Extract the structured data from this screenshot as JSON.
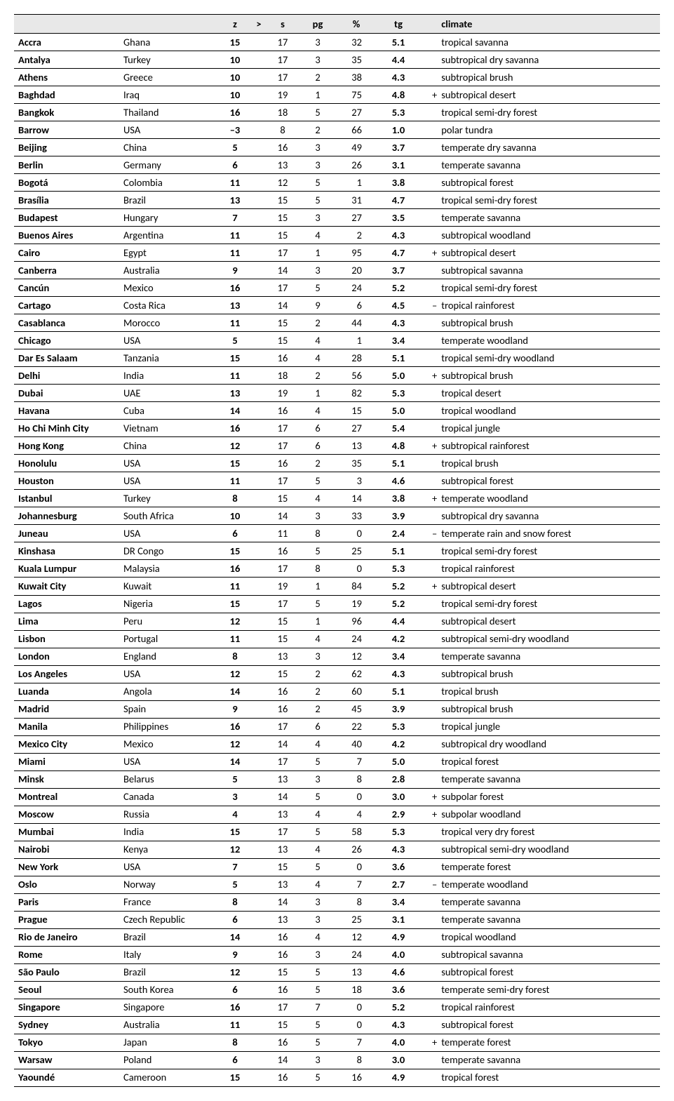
{
  "table": {
    "headers": {
      "city": "",
      "country": "",
      "z": "z",
      "gt": ">",
      "s": "s",
      "pg": "pg",
      "pct": "%",
      "tg": "tg",
      "prefix": "",
      "climate": "climate"
    },
    "rows": [
      {
        "city": "Accra",
        "country": "Ghana",
        "z": "15",
        "gt": "",
        "s": "17",
        "pg": "3",
        "pct": "32",
        "tg": "5.1",
        "prefix": "",
        "climate": "tropical savanna"
      },
      {
        "city": "Antalya",
        "country": "Turkey",
        "z": "10",
        "gt": "",
        "s": "17",
        "pg": "3",
        "pct": "35",
        "tg": "4.4",
        "prefix": "",
        "climate": "subtropical dry savanna"
      },
      {
        "city": "Athens",
        "country": "Greece",
        "z": "10",
        "gt": "",
        "s": "17",
        "pg": "2",
        "pct": "38",
        "tg": "4.3",
        "prefix": "",
        "climate": "subtropical brush"
      },
      {
        "city": "Baghdad",
        "country": "Iraq",
        "z": "10",
        "gt": "",
        "s": "19",
        "pg": "1",
        "pct": "75",
        "tg": "4.8",
        "prefix": "+",
        "climate": "subtropical desert"
      },
      {
        "city": "Bangkok",
        "country": "Thailand",
        "z": "16",
        "gt": "",
        "s": "18",
        "pg": "5",
        "pct": "27",
        "tg": "5.3",
        "prefix": "",
        "climate": "tropical semi-dry forest"
      },
      {
        "city": "Barrow",
        "country": "USA",
        "z": "–3",
        "gt": "",
        "s": "8",
        "pg": "2",
        "pct": "66",
        "tg": "1.0",
        "prefix": "",
        "climate": "polar tundra"
      },
      {
        "city": "Beijing",
        "country": "China",
        "z": "5",
        "gt": "",
        "s": "16",
        "pg": "3",
        "pct": "49",
        "tg": "3.7",
        "prefix": "",
        "climate": "temperate dry savanna"
      },
      {
        "city": "Berlin",
        "country": "Germany",
        "z": "6",
        "gt": "",
        "s": "13",
        "pg": "3",
        "pct": "26",
        "tg": "3.1",
        "prefix": "",
        "climate": "temperate savanna"
      },
      {
        "city": "Bogotá",
        "country": "Colombia",
        "z": "11",
        "gt": "",
        "s": "12",
        "pg": "5",
        "pct": "1",
        "tg": "3.8",
        "prefix": "",
        "climate": "subtropical forest"
      },
      {
        "city": "Brasília",
        "country": "Brazil",
        "z": "13",
        "gt": "",
        "s": "15",
        "pg": "5",
        "pct": "31",
        "tg": "4.7",
        "prefix": "",
        "climate": "tropical semi-dry forest"
      },
      {
        "city": "Budapest",
        "country": "Hungary",
        "z": "7",
        "gt": "",
        "s": "15",
        "pg": "3",
        "pct": "27",
        "tg": "3.5",
        "prefix": "",
        "climate": "temperate savanna"
      },
      {
        "city": "Buenos Aires",
        "country": "Argentina",
        "z": "11",
        "gt": "",
        "s": "15",
        "pg": "4",
        "pct": "2",
        "tg": "4.3",
        "prefix": "",
        "climate": "subtropical woodland"
      },
      {
        "city": "Cairo",
        "country": "Egypt",
        "z": "11",
        "gt": "",
        "s": "17",
        "pg": "1",
        "pct": "95",
        "tg": "4.7",
        "prefix": "+",
        "climate": "subtropical desert"
      },
      {
        "city": "Canberra",
        "country": "Australia",
        "z": "9",
        "gt": "",
        "s": "14",
        "pg": "3",
        "pct": "20",
        "tg": "3.7",
        "prefix": "",
        "climate": "subtropical savanna"
      },
      {
        "city": "Cancún",
        "country": "Mexico",
        "z": "16",
        "gt": "",
        "s": "17",
        "pg": "5",
        "pct": "24",
        "tg": "5.2",
        "prefix": "",
        "climate": "tropical semi-dry forest"
      },
      {
        "city": "Cartago",
        "country": "Costa Rica",
        "z": "13",
        "gt": "",
        "s": "14",
        "pg": "9",
        "pct": "6",
        "tg": "4.5",
        "prefix": "–",
        "climate": "tropical rainforest"
      },
      {
        "city": "Casablanca",
        "country": "Morocco",
        "z": "11",
        "gt": "",
        "s": "15",
        "pg": "2",
        "pct": "44",
        "tg": "4.3",
        "prefix": "",
        "climate": "subtropical brush"
      },
      {
        "city": "Chicago",
        "country": "USA",
        "z": "5",
        "gt": "",
        "s": "15",
        "pg": "4",
        "pct": "1",
        "tg": "3.4",
        "prefix": "",
        "climate": "temperate woodland"
      },
      {
        "city": "Dar Es Salaam",
        "country": "Tanzania",
        "z": "15",
        "gt": "",
        "s": "16",
        "pg": "4",
        "pct": "28",
        "tg": "5.1",
        "prefix": "",
        "climate": "tropical semi-dry woodland"
      },
      {
        "city": "Delhi",
        "country": "India",
        "z": "11",
        "gt": "",
        "s": "18",
        "pg": "2",
        "pct": "56",
        "tg": "5.0",
        "prefix": "+",
        "climate": "subtropical brush"
      },
      {
        "city": "Dubai",
        "country": "UAE",
        "z": "13",
        "gt": "",
        "s": "19",
        "pg": "1",
        "pct": "82",
        "tg": "5.3",
        "prefix": "",
        "climate": "tropical desert"
      },
      {
        "city": "Havana",
        "country": "Cuba",
        "z": "14",
        "gt": "",
        "s": "16",
        "pg": "4",
        "pct": "15",
        "tg": "5.0",
        "prefix": "",
        "climate": "tropical woodland"
      },
      {
        "city": "Ho Chi Minh City",
        "country": "Vietnam",
        "z": "16",
        "gt": "",
        "s": "17",
        "pg": "6",
        "pct": "27",
        "tg": "5.4",
        "prefix": "",
        "climate": "tropical jungle"
      },
      {
        "city": "Hong Kong",
        "country": "China",
        "z": "12",
        "gt": "",
        "s": "17",
        "pg": "6",
        "pct": "13",
        "tg": "4.8",
        "prefix": "+",
        "climate": "subtropical rainforest"
      },
      {
        "city": "Honolulu",
        "country": "USA",
        "z": "15",
        "gt": "",
        "s": "16",
        "pg": "2",
        "pct": "35",
        "tg": "5.1",
        "prefix": "",
        "climate": "tropical brush"
      },
      {
        "city": "Houston",
        "country": "USA",
        "z": "11",
        "gt": "",
        "s": "17",
        "pg": "5",
        "pct": "3",
        "tg": "4.6",
        "prefix": "",
        "climate": "subtropical forest"
      },
      {
        "city": "Istanbul",
        "country": "Turkey",
        "z": "8",
        "gt": "",
        "s": "15",
        "pg": "4",
        "pct": "14",
        "tg": "3.8",
        "prefix": "+",
        "climate": "temperate woodland"
      },
      {
        "city": "Johannesburg",
        "country": "South Africa",
        "z": "10",
        "gt": "",
        "s": "14",
        "pg": "3",
        "pct": "33",
        "tg": "3.9",
        "prefix": "",
        "climate": "subtropical dry savanna"
      },
      {
        "city": "Juneau",
        "country": "USA",
        "z": "6",
        "gt": "",
        "s": "11",
        "pg": "8",
        "pct": "0",
        "tg": "2.4",
        "prefix": "–",
        "climate": "temperate rain and snow forest"
      },
      {
        "city": "Kinshasa",
        "country": "DR Congo",
        "z": "15",
        "gt": "",
        "s": "16",
        "pg": "5",
        "pct": "25",
        "tg": "5.1",
        "prefix": "",
        "climate": "tropical semi-dry forest"
      },
      {
        "city": "Kuala Lumpur",
        "country": "Malaysia",
        "z": "16",
        "gt": "",
        "s": "17",
        "pg": "8",
        "pct": "0",
        "tg": "5.3",
        "prefix": "",
        "climate": "tropical rainforest"
      },
      {
        "city": "Kuwait City",
        "country": "Kuwait",
        "z": "11",
        "gt": "",
        "s": "19",
        "pg": "1",
        "pct": "84",
        "tg": "5.2",
        "prefix": "+",
        "climate": "subtropical desert"
      },
      {
        "city": "Lagos",
        "country": "Nigeria",
        "z": "15",
        "gt": "",
        "s": "17",
        "pg": "5",
        "pct": "19",
        "tg": "5.2",
        "prefix": "",
        "climate": "tropical semi-dry forest"
      },
      {
        "city": "Lima",
        "country": "Peru",
        "z": "12",
        "gt": "",
        "s": "15",
        "pg": "1",
        "pct": "96",
        "tg": "4.4",
        "prefix": "",
        "climate": "subtropical desert"
      },
      {
        "city": "Lisbon",
        "country": "Portugal",
        "z": "11",
        "gt": "",
        "s": "15",
        "pg": "4",
        "pct": "24",
        "tg": "4.2",
        "prefix": "",
        "climate": "subtropical semi-dry woodland"
      },
      {
        "city": "London",
        "country": "England",
        "z": "8",
        "gt": "",
        "s": "13",
        "pg": "3",
        "pct": "12",
        "tg": "3.4",
        "prefix": "",
        "climate": "temperate savanna"
      },
      {
        "city": "Los Angeles",
        "country": "USA",
        "z": "12",
        "gt": "",
        "s": "15",
        "pg": "2",
        "pct": "62",
        "tg": "4.3",
        "prefix": "",
        "climate": "subtropical brush"
      },
      {
        "city": "Luanda",
        "country": "Angola",
        "z": "14",
        "gt": "",
        "s": "16",
        "pg": "2",
        "pct": "60",
        "tg": "5.1",
        "prefix": "",
        "climate": "tropical brush"
      },
      {
        "city": "Madrid",
        "country": "Spain",
        "z": "9",
        "gt": "",
        "s": "16",
        "pg": "2",
        "pct": "45",
        "tg": "3.9",
        "prefix": "",
        "climate": "subtropical brush"
      },
      {
        "city": "Manila",
        "country": "Philippines",
        "z": "16",
        "gt": "",
        "s": "17",
        "pg": "6",
        "pct": "22",
        "tg": "5.3",
        "prefix": "",
        "climate": "tropical jungle"
      },
      {
        "city": "Mexico City",
        "country": "Mexico",
        "z": "12",
        "gt": "",
        "s": "14",
        "pg": "4",
        "pct": "40",
        "tg": "4.2",
        "prefix": "",
        "climate": "subtropical dry woodland"
      },
      {
        "city": "Miami",
        "country": "USA",
        "z": "14",
        "gt": "",
        "s": "17",
        "pg": "5",
        "pct": "7",
        "tg": "5.0",
        "prefix": "",
        "climate": "tropical forest"
      },
      {
        "city": "Minsk",
        "country": "Belarus",
        "z": "5",
        "gt": "",
        "s": "13",
        "pg": "3",
        "pct": "8",
        "tg": "2.8",
        "prefix": "",
        "climate": "temperate savanna"
      },
      {
        "city": "Montreal",
        "country": "Canada",
        "z": "3",
        "gt": "",
        "s": "14",
        "pg": "5",
        "pct": "0",
        "tg": "3.0",
        "prefix": "+",
        "climate": "subpolar forest"
      },
      {
        "city": "Moscow",
        "country": "Russia",
        "z": "4",
        "gt": "",
        "s": "13",
        "pg": "4",
        "pct": "4",
        "tg": "2.9",
        "prefix": "+",
        "climate": "subpolar woodland"
      },
      {
        "city": "Mumbai",
        "country": "India",
        "z": "15",
        "gt": "",
        "s": "17",
        "pg": "5",
        "pct": "58",
        "tg": "5.3",
        "prefix": "",
        "climate": "tropical very dry forest"
      },
      {
        "city": "Nairobi",
        "country": "Kenya",
        "z": "12",
        "gt": "",
        "s": "13",
        "pg": "4",
        "pct": "26",
        "tg": "4.3",
        "prefix": "",
        "climate": "subtropical semi-dry woodland"
      },
      {
        "city": "New York",
        "country": "USA",
        "z": "7",
        "gt": "",
        "s": "15",
        "pg": "5",
        "pct": "0",
        "tg": "3.6",
        "prefix": "",
        "climate": "temperate forest"
      },
      {
        "city": "Oslo",
        "country": "Norway",
        "z": "5",
        "gt": "",
        "s": "13",
        "pg": "4",
        "pct": "7",
        "tg": "2.7",
        "prefix": "–",
        "climate": "temperate woodland"
      },
      {
        "city": "Paris",
        "country": "France",
        "z": "8",
        "gt": "",
        "s": "14",
        "pg": "3",
        "pct": "8",
        "tg": "3.4",
        "prefix": "",
        "climate": "temperate savanna"
      },
      {
        "city": "Prague",
        "country": "Czech Republic",
        "z": "6",
        "gt": "",
        "s": "13",
        "pg": "3",
        "pct": "25",
        "tg": "3.1",
        "prefix": "",
        "climate": "temperate savanna"
      },
      {
        "city": "Rio de Janeiro",
        "country": "Brazil",
        "z": "14",
        "gt": "",
        "s": "16",
        "pg": "4",
        "pct": "12",
        "tg": "4.9",
        "prefix": "",
        "climate": "tropical woodland"
      },
      {
        "city": "Rome",
        "country": "Italy",
        "z": "9",
        "gt": "",
        "s": "16",
        "pg": "3",
        "pct": "24",
        "tg": "4.0",
        "prefix": "",
        "climate": "subtropical savanna"
      },
      {
        "city": "São Paulo",
        "country": "Brazil",
        "z": "12",
        "gt": "",
        "s": "15",
        "pg": "5",
        "pct": "13",
        "tg": "4.6",
        "prefix": "",
        "climate": "subtropical forest"
      },
      {
        "city": "Seoul",
        "country": "South Korea",
        "z": "6",
        "gt": "",
        "s": "16",
        "pg": "5",
        "pct": "18",
        "tg": "3.6",
        "prefix": "",
        "climate": "temperate semi-dry forest"
      },
      {
        "city": "Singapore",
        "country": "Singapore",
        "z": "16",
        "gt": "",
        "s": "17",
        "pg": "7",
        "pct": "0",
        "tg": "5.2",
        "prefix": "",
        "climate": "tropical rainforest"
      },
      {
        "city": "Sydney",
        "country": "Australia",
        "z": "11",
        "gt": "",
        "s": "15",
        "pg": "5",
        "pct": "0",
        "tg": "4.3",
        "prefix": "",
        "climate": "subtropical forest"
      },
      {
        "city": "Tokyo",
        "country": "Japan",
        "z": "8",
        "gt": "",
        "s": "16",
        "pg": "5",
        "pct": "7",
        "tg": "4.0",
        "prefix": "+",
        "climate": "temperate forest"
      },
      {
        "city": "Warsaw",
        "country": "Poland",
        "z": "6",
        "gt": "",
        "s": "14",
        "pg": "3",
        "pct": "8",
        "tg": "3.0",
        "prefix": "",
        "climate": "temperate savanna"
      },
      {
        "city": "Yaoundé",
        "country": "Cameroon",
        "z": "15",
        "gt": "",
        "s": "16",
        "pg": "5",
        "pct": "16",
        "tg": "4.9",
        "prefix": "",
        "climate": "tropical forest"
      }
    ],
    "styling": {
      "header_bg": "#e8e8e8",
      "border_color": "#000000",
      "font_family": "Calibri",
      "base_font_size_pt": 11
    }
  }
}
